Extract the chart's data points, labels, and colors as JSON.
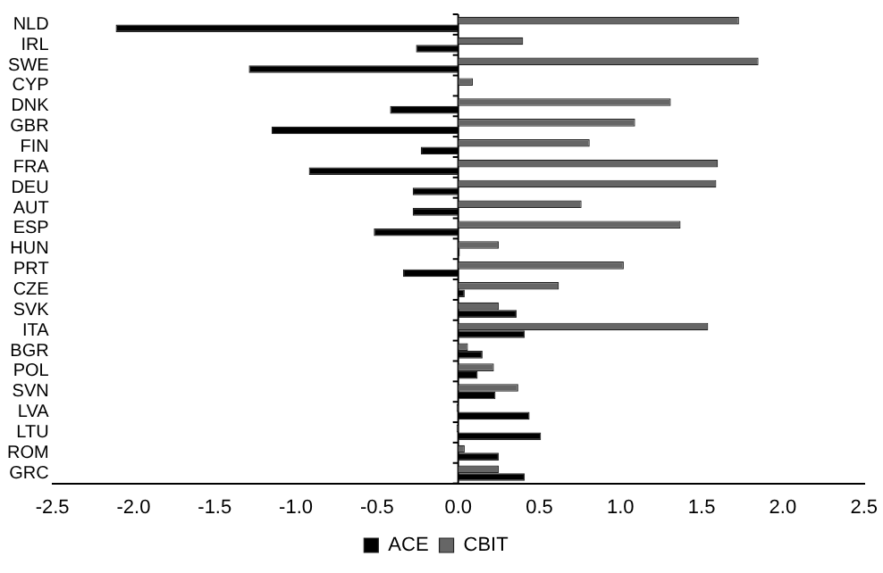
{
  "chart_data": {
    "type": "bar",
    "orientation": "horizontal",
    "categories": [
      "NLD",
      "IRL",
      "SWE",
      "CYP",
      "DNK",
      "GBR",
      "FIN",
      "FRA",
      "DEU",
      "AUT",
      "ESP",
      "HUN",
      "PRT",
      "CZE",
      "SVK",
      "ITA",
      "BGR",
      "POL",
      "SVN",
      "LVA",
      "LTU",
      "ROM",
      "GRC"
    ],
    "series": [
      {
        "name": "ACE",
        "color": "#000000",
        "values": [
          -2.11,
          -0.26,
          -1.29,
          0,
          -0.42,
          -1.15,
          -0.23,
          -0.92,
          -0.28,
          -0.28,
          -0.52,
          0.01,
          -0.34,
          0.04,
          0.36,
          0.41,
          0.15,
          0.12,
          0.23,
          0.44,
          0.51,
          0.25,
          0.41
        ]
      },
      {
        "name": "CBIT",
        "color": "#666666",
        "values": [
          1.73,
          0.4,
          1.85,
          0.09,
          1.31,
          1.09,
          0.81,
          1.6,
          1.59,
          0.76,
          1.37,
          0.25,
          1.02,
          0.62,
          0.25,
          1.54,
          0.06,
          0.22,
          0.37,
          -0.01,
          -0.01,
          0.04,
          0.25
        ]
      }
    ],
    "xlim": [
      -2.5,
      2.5
    ],
    "xticks": [
      {
        "value": -2.5,
        "label": "-2.5"
      },
      {
        "value": -2,
        "label": "-2.0"
      },
      {
        "value": -1.5,
        "label": "-1.5"
      },
      {
        "value": -1,
        "label": "-1.0"
      },
      {
        "value": -0.5,
        "label": "-0.5"
      },
      {
        "value": 0,
        "label": "0.0"
      },
      {
        "value": 0.5,
        "label": "0.5"
      },
      {
        "value": 1,
        "label": "1.0"
      },
      {
        "value": 1.5,
        "label": "1.5"
      },
      {
        "value": 2,
        "label": "2.0"
      },
      {
        "value": 2.5,
        "label": "2.5"
      }
    ],
    "legend": "bottom"
  }
}
